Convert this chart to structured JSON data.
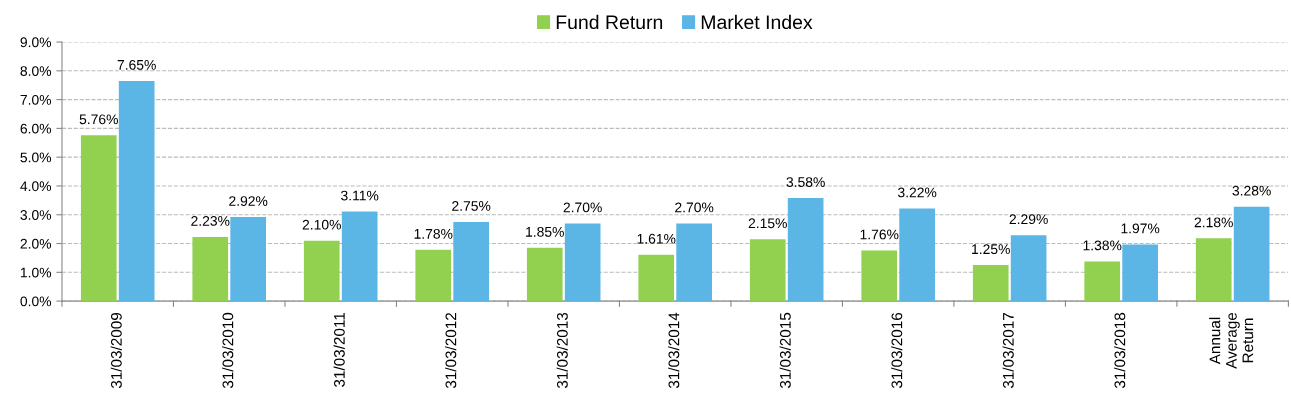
{
  "chart_data": {
    "type": "bar",
    "categories": [
      "31/03/2009",
      "31/03/2010",
      "31/03/2011",
      "31/03/2012",
      "31/03/2013",
      "31/03/2014",
      "31/03/2015",
      "31/03/2016",
      "31/03/2017",
      "31/03/2018",
      "Annual\nAverage\nReturn"
    ],
    "series": [
      {
        "name": "Fund Return",
        "color": "#92d050",
        "values": [
          5.76,
          2.23,
          2.1,
          1.78,
          1.85,
          1.61,
          2.15,
          1.76,
          1.25,
          1.38,
          2.18
        ],
        "value_labels": [
          "5.76%",
          "2.23%",
          "2.10%",
          "1.78%",
          "1.85%",
          "1.61%",
          "2.15%",
          "1.76%",
          "1.25%",
          "1.38%",
          "2.18%"
        ]
      },
      {
        "name": "Market Index",
        "color": "#5bb5e5",
        "values": [
          7.65,
          2.92,
          3.11,
          2.75,
          2.7,
          2.7,
          3.58,
          3.22,
          2.29,
          1.97,
          3.28
        ],
        "value_labels": [
          "7.65%",
          "2.92%",
          "3.11%",
          "2.75%",
          "2.70%",
          "2.70%",
          "3.58%",
          "3.22%",
          "2.29%",
          "1.97%",
          "3.28%"
        ]
      }
    ],
    "ylim": [
      0,
      9
    ],
    "yticks": [
      {
        "value": 0,
        "label": "0.0%"
      },
      {
        "value": 1,
        "label": "1.0%"
      },
      {
        "value": 2,
        "label": "2.0%"
      },
      {
        "value": 3,
        "label": "3.0%"
      },
      {
        "value": 4,
        "label": "4.0%"
      },
      {
        "value": 5,
        "label": "5.0%"
      },
      {
        "value": 6,
        "label": "6.0%"
      },
      {
        "value": 7,
        "label": "7.0%"
      },
      {
        "value": 8,
        "label": "8.0%"
      },
      {
        "value": 9,
        "label": "9.0%"
      }
    ],
    "grid": "y",
    "legend": "top"
  }
}
